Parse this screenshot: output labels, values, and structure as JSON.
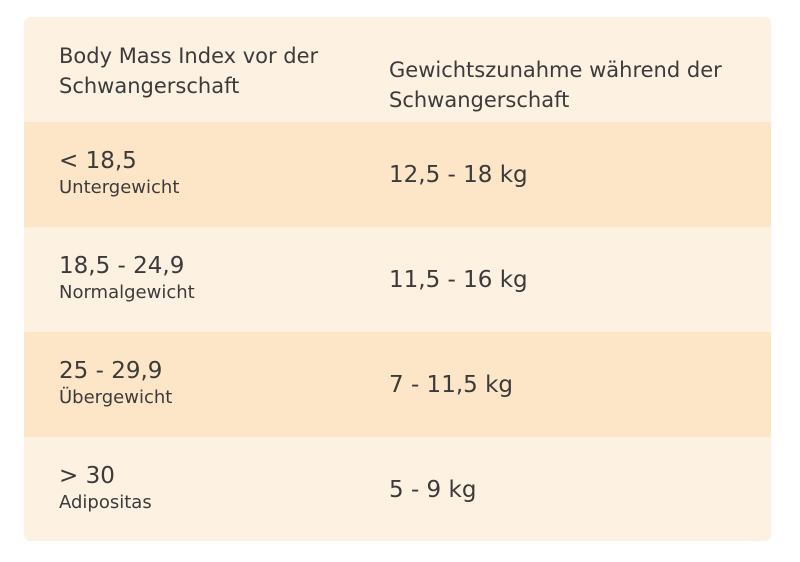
{
  "table": {
    "headers": [
      "Body Mass Index vor der Schwangerschaft",
      "Gewichtszunahme während der Schwangerschaft"
    ],
    "rows": [
      {
        "bmi": "< 18,5",
        "category": "Untergewicht",
        "gain": "12,5 - 18 kg"
      },
      {
        "bmi": "18,5 - 24,9",
        "category": "Normalgewicht",
        "gain": "11,5 - 16 kg"
      },
      {
        "bmi": "25 - 29,9",
        "category": "Übergewicht",
        "gain": "7 - 11,5 kg"
      },
      {
        "bmi": "> 30",
        "category": "Adipositas",
        "gain": "5 - 9 kg"
      }
    ]
  }
}
